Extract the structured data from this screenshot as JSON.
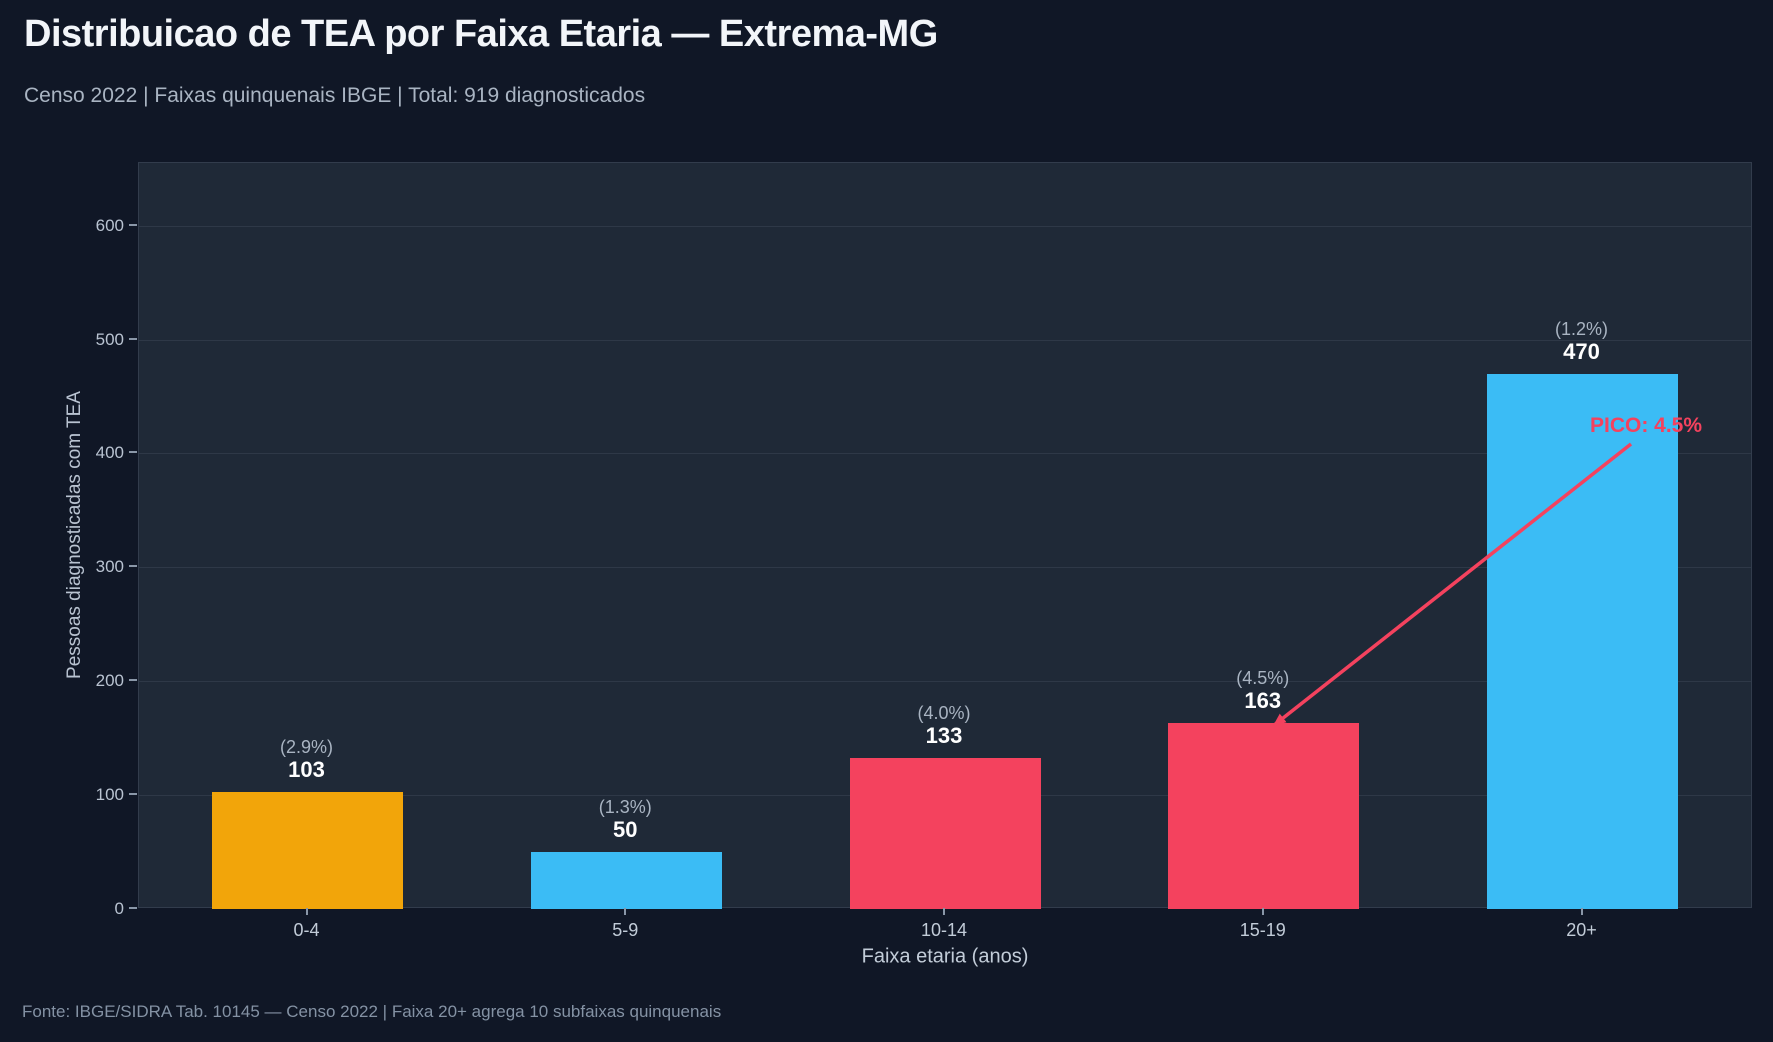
{
  "header": {
    "title": "Distribuicao de TEA por Faixa Etaria — Extrema-MG",
    "subtitle": "Censo 2022 | Faixas quinquenais IBGE | Total: 919 diagnosticados"
  },
  "footer": {
    "source": "Fonte: IBGE/SIDRA Tab. 10145 — Censo 2022 | Faixa 20+ agrega 10 subfaixas quinquenais"
  },
  "chart_data": {
    "type": "bar",
    "title": "Distribuicao de TEA por Faixa Etaria — Extrema-MG",
    "categories": [
      "0-4",
      "5-9",
      "10-14",
      "15-19",
      "20+"
    ],
    "values": [
      103,
      50,
      133,
      163,
      470
    ],
    "pct_labels": [
      "(2.9%)",
      "(1.3%)",
      "(4.0%)",
      "(4.5%)",
      "(1.2%)"
    ],
    "bar_colors": [
      "#f2a50a",
      "#3bbcf5",
      "#f4425e",
      "#f4425e",
      "#3bbcf5"
    ],
    "xlabel": "Faixa etaria (anos)",
    "ylabel": "Pessoas diagnosticadas com TEA",
    "yticks": [
      0,
      100,
      200,
      300,
      400,
      500,
      600
    ],
    "ylim": [
      0,
      655
    ],
    "grid": "horizontal",
    "legend": "none",
    "annotation": {
      "text": "PICO: 4.5%",
      "color": "#f4425e",
      "points_to_category": "15-19"
    }
  },
  "colors": {
    "page_bg": "#101726",
    "panel_bg": "#1f2937",
    "grid": "rgba(148,163,184,0.13)",
    "title": "#f2f5f9",
    "subtitle": "#a9b4c2",
    "footer": "#8492a4",
    "tick_label": "#b9c3d1",
    "value_label": "#ffffff"
  }
}
